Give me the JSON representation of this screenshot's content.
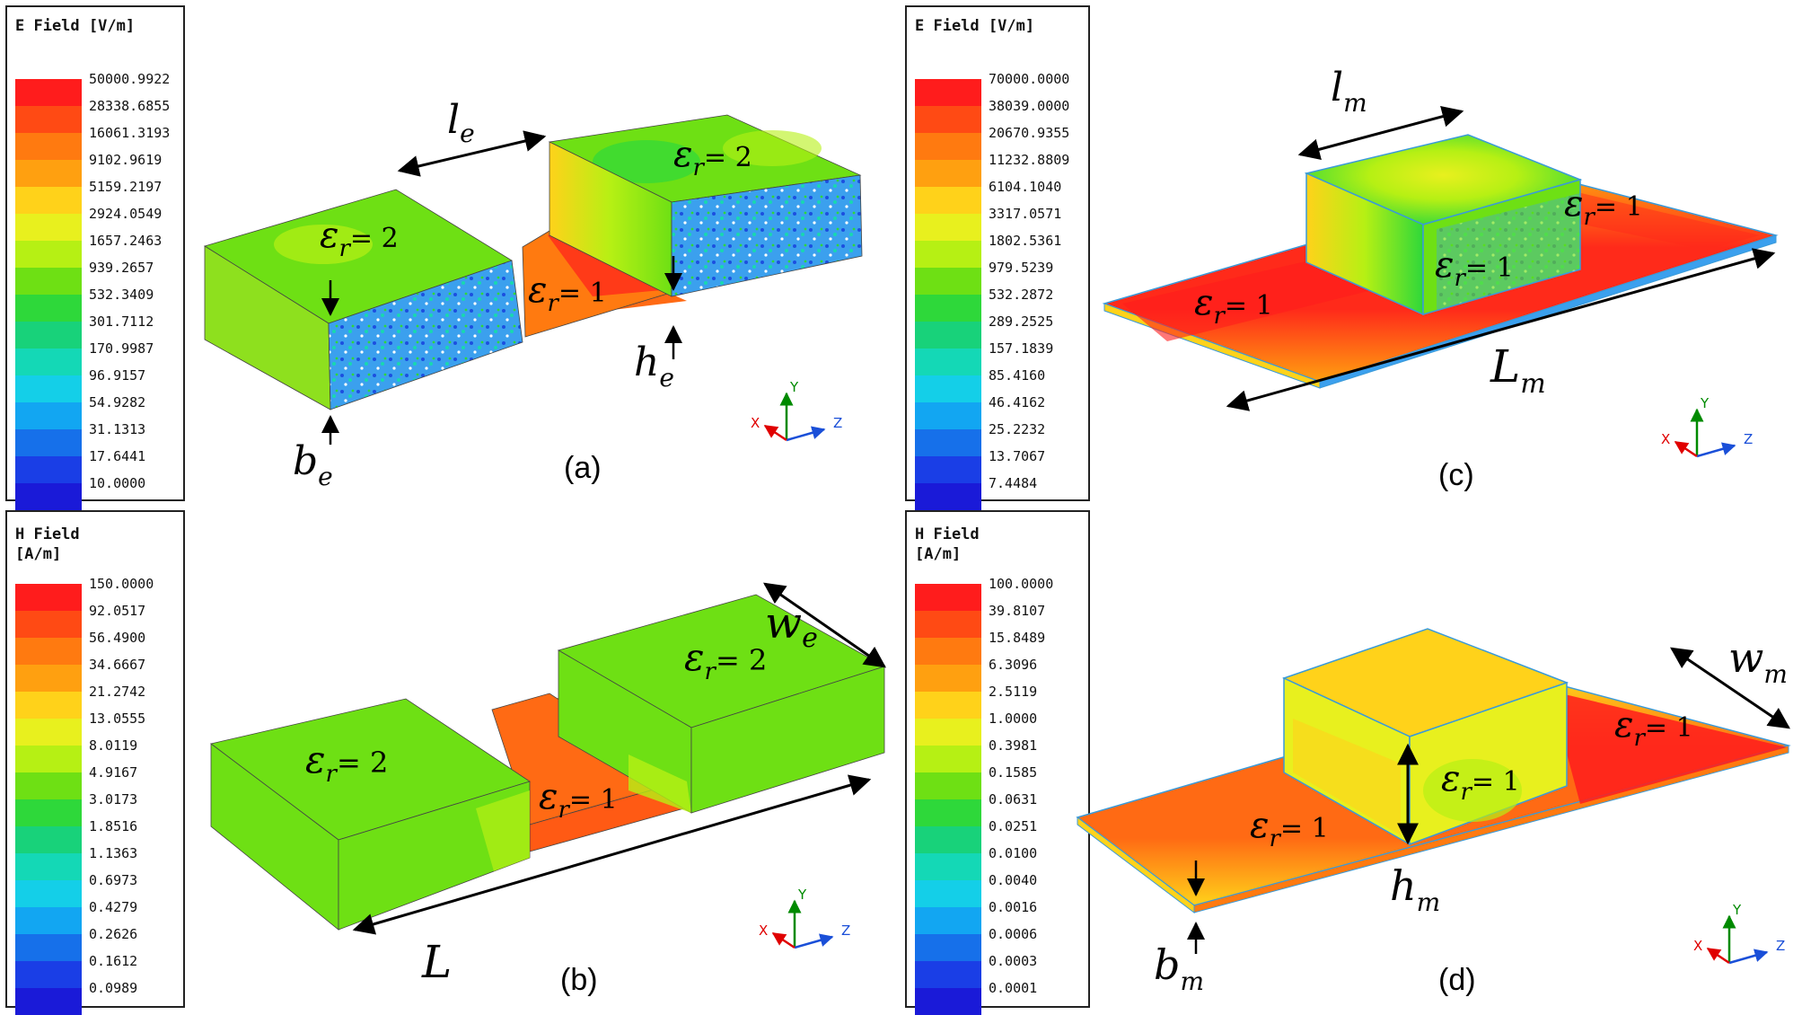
{
  "panels": [
    {
      "id": "a",
      "legend_title": "E Field [V/m]",
      "scale": [
        "50000.9922",
        "28338.6855",
        "16061.3193",
        "9102.9619",
        "5159.2197",
        "2924.0549",
        "1657.2463",
        "939.2657",
        "532.3409",
        "301.7112",
        "170.9987",
        "96.9157",
        "54.9282",
        "31.1313",
        "17.6441",
        "10.0000"
      ],
      "caption": "(a)",
      "labels": {
        "dim1_main": "l",
        "dim1_sub": "e",
        "left_block": "= 2",
        "center_block": "= 1",
        "right_block": "= 2",
        "h_main": "h",
        "h_sub": "e",
        "b_main": "b",
        "b_sub": "e",
        "eps": "ε",
        "r": "r"
      }
    },
    {
      "id": "b",
      "legend_title": "H Field\n[A/m]",
      "scale": [
        "150.0000",
        "92.0517",
        "56.4900",
        "34.6667",
        "21.2742",
        "13.0555",
        "8.0119",
        "4.9167",
        "3.0173",
        "1.8516",
        "1.1363",
        "0.6973",
        "0.4279",
        "0.2626",
        "0.1612",
        "0.0989"
      ],
      "caption": "(b)",
      "labels": {
        "w_main": "w",
        "w_sub": "e",
        "L": "L",
        "left_block": "= 2",
        "center_block": "= 1",
        "right_block": "= 2",
        "eps": "ε",
        "r": "r"
      }
    },
    {
      "id": "c",
      "legend_title": "E Field [V/m]",
      "scale": [
        "70000.0000",
        "38039.0000",
        "20670.9355",
        "11232.8809",
        "6104.1040",
        "3317.0571",
        "1802.5361",
        "979.5239",
        "532.2872",
        "289.2525",
        "157.1839",
        "85.4160",
        "46.4162",
        "25.2232",
        "13.7067",
        "7.4484"
      ],
      "caption": "(c)",
      "labels": {
        "l_main": "l",
        "l_sub": "m",
        "L_main": "L",
        "L_sub": "m",
        "left_strip": "= 1",
        "center_block": "= 1",
        "right_strip": "= 1",
        "eps": "ε",
        "r": "r"
      }
    },
    {
      "id": "d",
      "legend_title": "H Field\n[A/m]",
      "scale": [
        "100.0000",
        "39.8107",
        "15.8489",
        "6.3096",
        "2.5119",
        "1.0000",
        "0.3981",
        "0.1585",
        "0.0631",
        "0.0251",
        "0.0100",
        "0.0040",
        "0.0016",
        "0.0006",
        "0.0003",
        "0.0001"
      ],
      "caption": "(d)",
      "labels": {
        "w_main": "w",
        "w_sub": "m",
        "h_main": "h",
        "h_sub": "m",
        "b_main": "b",
        "b_sub": "m",
        "left_strip": "= 1",
        "center_block": "= 1",
        "right_strip": "= 1",
        "eps": "ε",
        "r": "r"
      }
    }
  ],
  "axes": {
    "y": "Y",
    "x": "X",
    "z": "Z"
  },
  "colors": {
    "scale": [
      "#ff1c1c",
      "#ff4a14",
      "#ff7a10",
      "#ffa010",
      "#ffd21a",
      "#e8f01e",
      "#b6f014",
      "#6ee014",
      "#2ed83a",
      "#18d27a",
      "#14d8b6",
      "#14cfe8",
      "#12a6f2",
      "#1670ea",
      "#1a3ee6",
      "#1a1ad8"
    ]
  }
}
